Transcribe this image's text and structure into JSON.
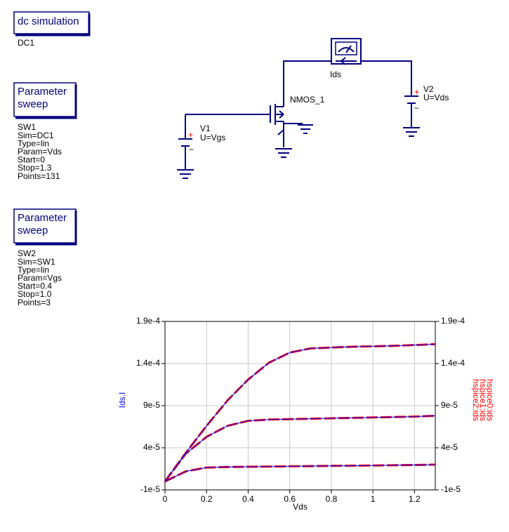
{
  "blocks": [
    {
      "title": [
        "dc simulation"
      ],
      "props": [
        "DC1"
      ]
    },
    {
      "title": [
        "Parameter",
        "sweep"
      ],
      "props": [
        "SW1",
        "Sim=DC1",
        "Type=lin",
        "Param=Vds",
        "Start=0",
        "Stop=1.3",
        "Points=131"
      ]
    },
    {
      "title": [
        "Parameter",
        "sweep"
      ],
      "props": [
        "SW2",
        "Sim=SW1",
        "Type=lin",
        "Param=Vgs",
        "Start=0.4",
        "Stop=1.0",
        "Points=3"
      ]
    }
  ],
  "components": {
    "ammeter": "Ids",
    "transistor": "NMOS_1",
    "v1": {
      "name": "V1",
      "value": "U=Vgs"
    },
    "v2": {
      "name": "V2",
      "value": "U=Vds"
    }
  },
  "chart_data": {
    "type": "line",
    "xlabel": "Vds",
    "x": [
      0,
      0.1,
      0.2,
      0.3,
      0.4,
      0.5,
      0.6,
      0.7,
      0.8,
      0.9,
      1.0,
      1.1,
      1.2,
      1.3
    ],
    "xlim": [
      0,
      1.3
    ],
    "xticks": [
      0,
      0.2,
      0.4,
      0.6,
      0.8,
      1,
      1.2
    ],
    "ylim": [
      -1e-05,
      0.00019
    ],
    "yticks": [
      {
        "value": -1e-05,
        "label": "-1e-5"
      },
      {
        "value": 4e-05,
        "label": "4e-5"
      },
      {
        "value": 9e-05,
        "label": "9e-5"
      },
      {
        "value": 0.00014,
        "label": "1.4e-4"
      },
      {
        "value": 0.00019,
        "label": "1.9e-4"
      }
    ],
    "y2lim": [
      -1e-05,
      0.00019
    ],
    "y2ticks": [
      {
        "value": -1e-05,
        "label": "-1e-5"
      },
      {
        "value": 4e-05,
        "label": "4e-5"
      },
      {
        "value": 9e-05,
        "label": "9e-5"
      },
      {
        "value": 0.00014,
        "label": "1.4e-4"
      },
      {
        "value": 0.00019,
        "label": "1.9e-4"
      }
    ],
    "grid": true,
    "series": [
      {
        "name": "Ids.I",
        "color": "#0000ff",
        "values": [
          [
            0,
            1.2e-05,
            1.65e-05,
            1.72e-05,
            1.75e-05,
            1.77e-05,
            1.8e-05,
            1.82e-05,
            1.85e-05,
            1.87e-05,
            1.9e-05,
            1.93e-05,
            1.96e-05,
            2e-05
          ],
          [
            0,
            3.3e-05,
            5.3e-05,
            6.6e-05,
            7.2e-05,
            7.35e-05,
            7.4e-05,
            7.45e-05,
            7.5e-05,
            7.55e-05,
            7.6e-05,
            7.65e-05,
            7.7e-05,
            7.8e-05
          ],
          [
            0,
            3.4e-05,
            6.6e-05,
            9.6e-05,
            0.000121,
            0.000141,
            0.000153,
            0.000158,
            0.000159,
            0.00016,
            0.0001605,
            0.000161,
            0.000162,
            0.000163
          ]
        ]
      },
      {
        "name": "hspice0:ids",
        "color": "#ff0000",
        "axis": "y2",
        "values": [
          0,
          1.2e-05,
          1.65e-05,
          1.72e-05,
          1.75e-05,
          1.77e-05,
          1.8e-05,
          1.82e-05,
          1.85e-05,
          1.87e-05,
          1.9e-05,
          1.93e-05,
          1.96e-05,
          2e-05
        ]
      },
      {
        "name": "hspice1:ids",
        "color": "#ff0000",
        "axis": "y2",
        "values": [
          0,
          3.3e-05,
          5.3e-05,
          6.6e-05,
          7.2e-05,
          7.35e-05,
          7.4e-05,
          7.45e-05,
          7.5e-05,
          7.55e-05,
          7.6e-05,
          7.65e-05,
          7.7e-05,
          7.8e-05
        ]
      },
      {
        "name": "hspice2:ids",
        "color": "#ff0000",
        "axis": "y2",
        "values": [
          0,
          3.4e-05,
          6.6e-05,
          9.6e-05,
          0.000121,
          0.000141,
          0.000153,
          0.000158,
          0.000159,
          0.00016,
          0.0001605,
          0.000161,
          0.000162,
          0.000163
        ]
      }
    ]
  }
}
